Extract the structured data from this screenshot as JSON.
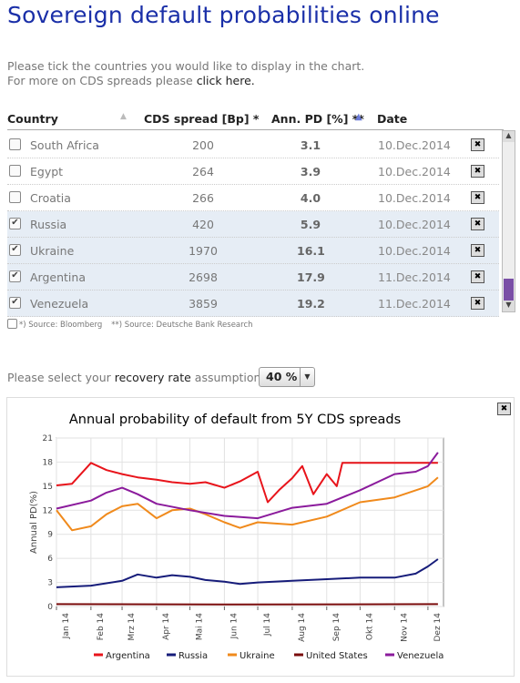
{
  "page": {
    "title": "Sovereign default probabilities online",
    "intro_line1": "Please tick the countries you would like to display in the chart.",
    "intro_line2_prefix": "For more on CDS spreads please ",
    "intro_link": "click here."
  },
  "table": {
    "headers": {
      "country": "Country",
      "cds": "CDS spread [Bp] *",
      "pd": "Ann. PD [%] **",
      "date": "Date"
    },
    "rows": [
      {
        "country": "South Africa",
        "cds": "200",
        "pd": "3.1",
        "date": "10.Dec.2014",
        "checked": false
      },
      {
        "country": "Egypt",
        "cds": "264",
        "pd": "3.9",
        "date": "10.Dec.2014",
        "checked": false
      },
      {
        "country": "Croatia",
        "cds": "266",
        "pd": "4.0",
        "date": "10.Dec.2014",
        "checked": false
      },
      {
        "country": "Russia",
        "cds": "420",
        "pd": "5.9",
        "date": "10.Dec.2014",
        "checked": true
      },
      {
        "country": "Ukraine",
        "cds": "1970",
        "pd": "16.1",
        "date": "10.Dec.2014",
        "checked": true
      },
      {
        "country": "Argentina",
        "cds": "2698",
        "pd": "17.9",
        "date": "11.Dec.2014",
        "checked": true
      },
      {
        "country": "Venezuela",
        "cds": "3859",
        "pd": "19.2",
        "date": "11.Dec.2014",
        "checked": true
      }
    ],
    "footnote1": "*) Source: Bloomberg",
    "footnote2": "**) Source: Deutsche Bank Research"
  },
  "recovery": {
    "prefix": "Please select your ",
    "highlight": "recovery rate",
    "suffix": " assumption:",
    "selected": "40 %"
  },
  "colors": {
    "Argentina": "#e8141b",
    "Russia": "#161c7a",
    "Ukraine": "#f08a1c",
    "United States": "#7a0c0c",
    "Venezuela": "#8b1b9c"
  },
  "chart_data": {
    "type": "line",
    "title": "Annual probability of default from 5Y CDS spreads",
    "ylabel": "Annual PD(%)",
    "xlabel": "",
    "ylim": [
      0,
      21
    ],
    "yticks": [
      0,
      3,
      6,
      9,
      12,
      15,
      18,
      21
    ],
    "x_ticks": [
      "Jan 14",
      "Feb 14",
      "Mrz 14",
      "Apr 14",
      "Mai 14",
      "Jun 14",
      "Jul 14",
      "Aug 14",
      "Sep 14",
      "Okt 14",
      "Nov 14",
      "Dez 14"
    ],
    "x_months": [
      "2014-01",
      "2014-02",
      "2014-03",
      "2014-04",
      "2014-05",
      "2014-06",
      "2014-07",
      "2014-08",
      "2014-09",
      "2014-10",
      "2014-11",
      "2014-12"
    ],
    "grid": true,
    "legend": "bottom",
    "series": [
      {
        "name": "Argentina",
        "x": [
          "2014-01-01",
          "2014-01-15",
          "2014-02-01",
          "2014-02-15",
          "2014-03-01",
          "2014-03-15",
          "2014-04-01",
          "2014-04-15",
          "2014-05-01",
          "2014-05-15",
          "2014-06-01",
          "2014-06-15",
          "2014-07-01",
          "2014-07-10",
          "2014-07-20",
          "2014-08-01",
          "2014-08-10",
          "2014-08-20",
          "2014-09-01",
          "2014-09-10",
          "2014-09-15",
          "2014-10-01",
          "2014-11-01",
          "2014-12-01",
          "2014-12-10"
        ],
        "values": [
          15.1,
          15.3,
          17.9,
          17.0,
          16.5,
          16.1,
          15.8,
          15.5,
          15.3,
          15.5,
          14.8,
          15.6,
          16.8,
          13.0,
          14.5,
          16.0,
          17.5,
          14.0,
          16.5,
          15.0,
          17.9,
          17.9,
          17.9,
          17.9,
          17.9
        ]
      },
      {
        "name": "Russia",
        "x": [
          "2014-01-01",
          "2014-02-01",
          "2014-03-01",
          "2014-03-15",
          "2014-04-01",
          "2014-04-15",
          "2014-05-01",
          "2014-05-15",
          "2014-06-01",
          "2014-06-15",
          "2014-07-01",
          "2014-08-01",
          "2014-09-01",
          "2014-10-01",
          "2014-11-01",
          "2014-11-20",
          "2014-12-01",
          "2014-12-10"
        ],
        "values": [
          2.4,
          2.6,
          3.2,
          4.0,
          3.6,
          3.9,
          3.7,
          3.3,
          3.1,
          2.8,
          3.0,
          3.2,
          3.4,
          3.6,
          3.6,
          4.1,
          5.0,
          5.9
        ]
      },
      {
        "name": "Ukraine",
        "x": [
          "2014-01-01",
          "2014-01-15",
          "2014-02-01",
          "2014-02-15",
          "2014-03-01",
          "2014-03-15",
          "2014-04-01",
          "2014-04-15",
          "2014-05-01",
          "2014-05-15",
          "2014-06-01",
          "2014-06-15",
          "2014-07-01",
          "2014-08-01",
          "2014-09-01",
          "2014-10-01",
          "2014-11-01",
          "2014-12-01",
          "2014-12-10"
        ],
        "values": [
          12.0,
          9.5,
          10.0,
          11.5,
          12.5,
          12.8,
          11.0,
          12.0,
          12.2,
          11.5,
          10.5,
          9.8,
          10.5,
          10.2,
          11.2,
          13.0,
          13.6,
          15.0,
          16.1
        ]
      },
      {
        "name": "United States",
        "x": [
          "2014-01-01",
          "2014-06-01",
          "2014-12-10"
        ],
        "values": [
          0.3,
          0.25,
          0.3
        ]
      },
      {
        "name": "Venezuela",
        "x": [
          "2014-01-01",
          "2014-02-01",
          "2014-02-15",
          "2014-03-01",
          "2014-03-15",
          "2014-04-01",
          "2014-05-01",
          "2014-06-01",
          "2014-07-01",
          "2014-08-01",
          "2014-09-01",
          "2014-10-01",
          "2014-11-01",
          "2014-11-20",
          "2014-12-01",
          "2014-12-10"
        ],
        "values": [
          12.2,
          13.2,
          14.2,
          14.8,
          14.0,
          12.8,
          12.0,
          11.3,
          11.0,
          12.3,
          12.8,
          14.5,
          16.5,
          16.8,
          17.5,
          19.2
        ]
      }
    ]
  }
}
